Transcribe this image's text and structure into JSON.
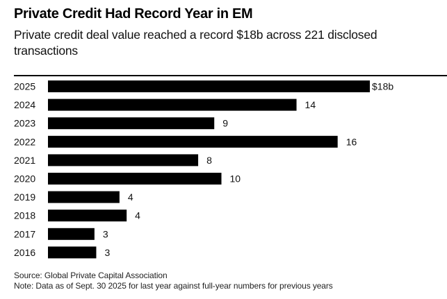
{
  "chart_data": {
    "type": "bar",
    "orientation": "horizontal",
    "title": "Private Credit Had Record Year in EM",
    "subtitle": "Private credit deal value reached a record $18b across 221 disclosed transactions",
    "xlabel": "",
    "ylabel": "",
    "grid": false,
    "legend": "none",
    "xlim": [
      0,
      18
    ],
    "bar_color": "#000000",
    "categories": [
      "2025",
      "2024",
      "2023",
      "2022",
      "2021",
      "2020",
      "2019",
      "2018",
      "2017",
      "2016"
    ],
    "values": [
      18.0,
      13.9,
      9.3,
      16.2,
      8.4,
      9.7,
      4.0,
      4.4,
      2.6,
      2.7
    ],
    "data_labels": [
      "$18b",
      "14",
      "9",
      "16",
      "8",
      "10",
      "4",
      "4",
      "3",
      "3"
    ],
    "unit": "$ billions"
  },
  "footer": {
    "source": "Source: Global Private Capital Association",
    "note": "Note: Data as of Sept. 30 2025 for last year against full-year numbers for previous years"
  }
}
